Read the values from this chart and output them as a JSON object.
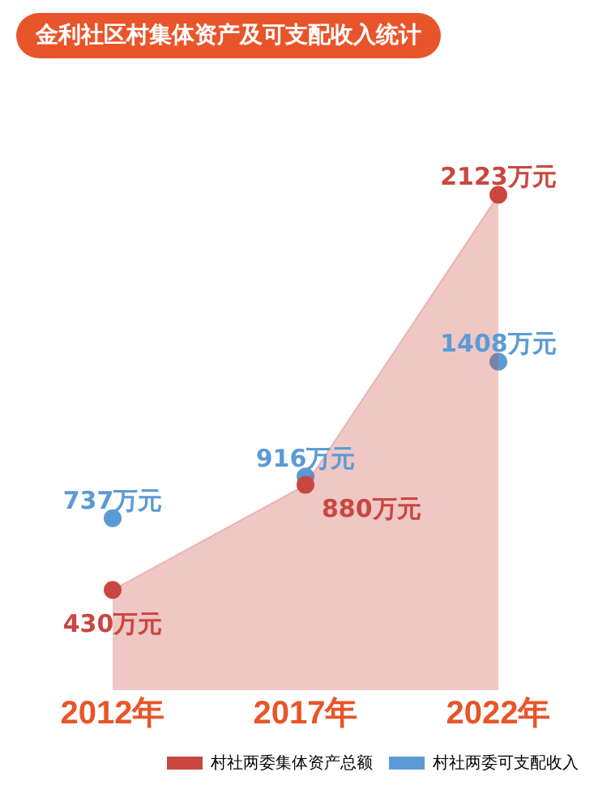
{
  "chart_data": {
    "type": "area",
    "title": "金利社区村集体资产及可支配收入统计",
    "categories": [
      "2012年",
      "2017年",
      "2022年"
    ],
    "series": [
      {
        "name": "村社两委集体资产总额",
        "color": "#c9473f",
        "values": [
          430,
          880,
          2123
        ],
        "value_labels": [
          "430万元",
          "880万元",
          "2123万元"
        ]
      },
      {
        "name": "村社两委可支配收入",
        "type": "scatter",
        "color": "#5b9bd5",
        "values": [
          737,
          916,
          1408
        ],
        "value_labels": [
          "737万元",
          "916万元",
          "1408万元"
        ]
      }
    ],
    "tick_labels": "x",
    "grid": false,
    "legend": "bottom right",
    "marker": "circle"
  }
}
